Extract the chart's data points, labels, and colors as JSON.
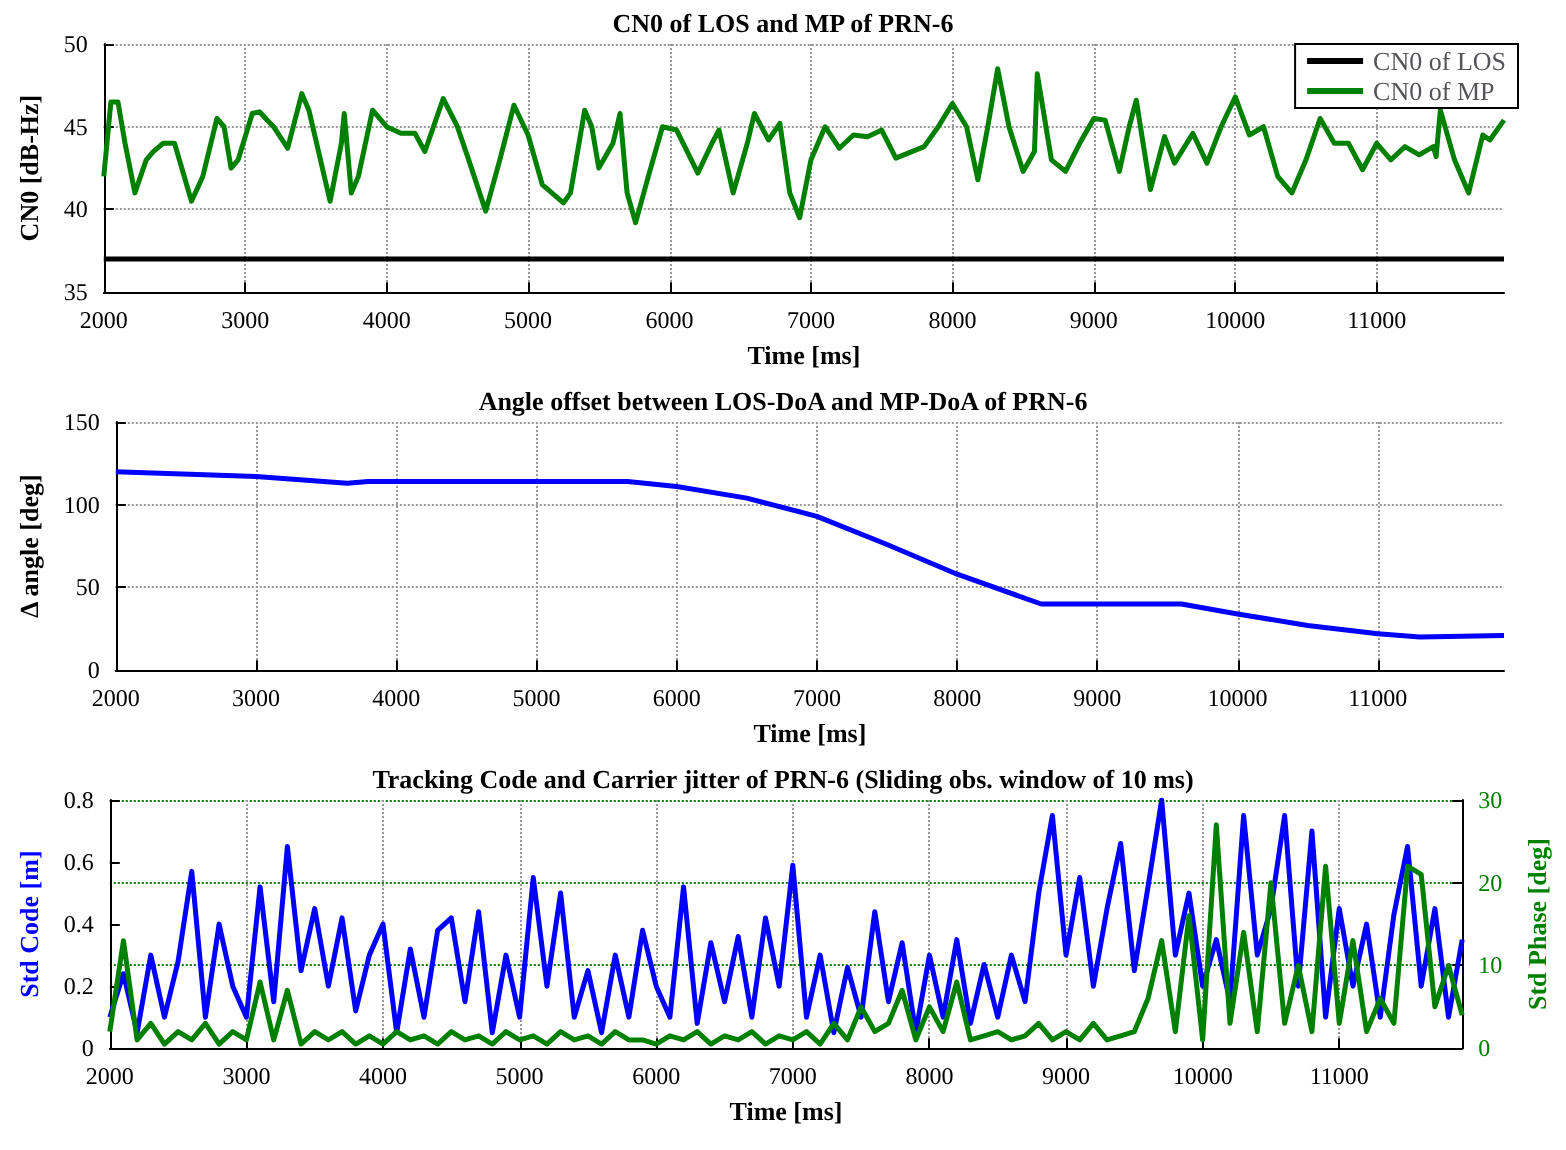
{
  "chart_data": [
    {
      "type": "line",
      "title": "CN0 of LOS and MP of PRN-6",
      "xlabel": "Time [ms]",
      "ylabel": "CN0 [dB-Hz]",
      "xlim": [
        2000,
        11900
      ],
      "xticks": [
        2000,
        3000,
        4000,
        5000,
        6000,
        7000,
        8000,
        9000,
        10000,
        11000
      ],
      "ylim": [
        35,
        50
      ],
      "yticks": [
        35,
        40,
        45,
        50
      ],
      "grid": true,
      "legend": "top right",
      "series": [
        {
          "name": "CN0 of LOS",
          "color": "#000000",
          "x": [
            2000,
            11900
          ],
          "values": [
            37,
            37
          ]
        },
        {
          "name": "CN0 of MP",
          "color": "#008000",
          "x": [
            2000,
            2050,
            2100,
            2150,
            2220,
            2300,
            2350,
            2420,
            2500,
            2620,
            2700,
            2800,
            2850,
            2900,
            2950,
            3050,
            3100,
            3200,
            3300,
            3400,
            3450,
            3600,
            3680,
            3700,
            3750,
            3800,
            3900,
            4000,
            4100,
            4200,
            4270,
            4400,
            4500,
            4580,
            4700,
            4800,
            4900,
            5000,
            5100,
            5250,
            5300,
            5400,
            5450,
            5500,
            5600,
            5650,
            5700,
            5760,
            5850,
            5950,
            6050,
            6200,
            6300,
            6350,
            6450,
            6550,
            6600,
            6700,
            6780,
            6850,
            6920,
            7000,
            7100,
            7200,
            7300,
            7400,
            7500,
            7600,
            7800,
            7900,
            8000,
            8100,
            8180,
            8250,
            8320,
            8400,
            8500,
            8580,
            8600,
            8700,
            8800,
            8900,
            9000,
            9080,
            9180,
            9250,
            9300,
            9400,
            9500,
            9570,
            9700,
            9800,
            9900,
            10000,
            10100,
            10200,
            10300,
            10400,
            10500,
            10600,
            10700,
            10800,
            10900,
            11000,
            11100,
            11200,
            11300,
            11400,
            11420,
            11450,
            11550,
            11650,
            11750,
            11800,
            11900
          ],
          "values": [
            42,
            46.5,
            46.5,
            44,
            41,
            43,
            43.5,
            44,
            44,
            40.5,
            42,
            45.5,
            45,
            42.5,
            43,
            45.8,
            45.9,
            45,
            43.7,
            47,
            46,
            40.5,
            44,
            45.8,
            41,
            42,
            46,
            45,
            44.6,
            44.6,
            43.5,
            46.7,
            45,
            43,
            39.9,
            43,
            46.3,
            44.5,
            41.5,
            40.4,
            41,
            46,
            45,
            42.5,
            44,
            45.8,
            41,
            39.2,
            42,
            45,
            44.8,
            42.2,
            44,
            44.8,
            41,
            44,
            45.8,
            44.2,
            45.2,
            41,
            39.5,
            43,
            45,
            43.7,
            44.5,
            44.4,
            44.8,
            43.1,
            43.8,
            45,
            46.4,
            45,
            41.8,
            45,
            48.5,
            45,
            42.3,
            43.5,
            48.2,
            43,
            42.3,
            44,
            45.5,
            45.4,
            42.3,
            45,
            46.6,
            41.2,
            44.4,
            42.8,
            44.6,
            42.8,
            45,
            46.8,
            44.5,
            45,
            42,
            41,
            43,
            45.5,
            44,
            44,
            42.4,
            44,
            43,
            43.8,
            43.3,
            43.8,
            43.2,
            46,
            43,
            41,
            44.5,
            44.2,
            45.4
          ]
        }
      ]
    },
    {
      "type": "line",
      "title": "Angle offset between LOS-DoA and MP-DoA of PRN-6",
      "xlabel": "Time [ms]",
      "ylabel": "Δ angle [deg]",
      "xlim": [
        2000,
        11900
      ],
      "xticks": [
        2000,
        3000,
        4000,
        5000,
        6000,
        7000,
        8000,
        9000,
        10000,
        11000
      ],
      "ylim": [
        0,
        150
      ],
      "yticks": [
        0,
        50,
        100,
        150
      ],
      "grid": true,
      "series": [
        {
          "color": "#0000ff",
          "x": [
            2000,
            3000,
            3650,
            3800,
            5650,
            6000,
            6500,
            7000,
            7500,
            8000,
            8600,
            9600,
            10000,
            10500,
            11000,
            11300,
            11900
          ],
          "values": [
            120,
            117,
            113,
            114,
            114,
            111,
            104,
            93,
            76,
            58,
            40,
            40,
            34,
            27,
            22,
            20,
            21
          ]
        }
      ]
    },
    {
      "type": "line",
      "title": "Tracking Code and Carrier jitter of PRN-6 (Sliding obs. window of 10 ms)",
      "xlabel": "Time [ms]",
      "ylabel": "Std Code [m]",
      "y2label": "Std Phase [deg]",
      "xlim": [
        2000,
        11900
      ],
      "xticks": [
        2000,
        3000,
        4000,
        5000,
        6000,
        7000,
        8000,
        9000,
        10000,
        11000
      ],
      "ylim": [
        0,
        0.8
      ],
      "yticks": [
        0,
        0.2,
        0.4,
        0.6,
        0.8
      ],
      "y2lim": [
        0,
        30
      ],
      "y2ticks": [
        0,
        10,
        20,
        30
      ],
      "grid": true,
      "series": [
        {
          "color": "#0000ff",
          "values": [
            0.1,
            0.24,
            0.05,
            0.3,
            0.1,
            0.28,
            0.57,
            0.1,
            0.4,
            0.2,
            0.1,
            0.52,
            0.15,
            0.65,
            0.25,
            0.45,
            0.2,
            0.42,
            0.12,
            0.3,
            0.4,
            0.05,
            0.32,
            0.1,
            0.38,
            0.42,
            0.15,
            0.44,
            0.05,
            0.3,
            0.1,
            0.55,
            0.2,
            0.5,
            0.1,
            0.25,
            0.05,
            0.3,
            0.1,
            0.38,
            0.2,
            0.1,
            0.52,
            0.08,
            0.34,
            0.15,
            0.36,
            0.1,
            0.42,
            0.2,
            0.59,
            0.1,
            0.3,
            0.05,
            0.26,
            0.1,
            0.44,
            0.15,
            0.34,
            0.05,
            0.3,
            0.1,
            0.35,
            0.08,
            0.27,
            0.1,
            0.3,
            0.15,
            0.5,
            0.75,
            0.3,
            0.55,
            0.2,
            0.45,
            0.66,
            0.25,
            0.52,
            0.8,
            0.3,
            0.5,
            0.2,
            0.35,
            0.15,
            0.75,
            0.3,
            0.45,
            0.75,
            0.2,
            0.7,
            0.1,
            0.45,
            0.2,
            0.4,
            0.1,
            0.43,
            0.65,
            0.2,
            0.45,
            0.1,
            0.35
          ]
        },
        {
          "color": "#008000",
          "axis": "y2",
          "values": [
            2,
            13,
            1,
            3,
            0.5,
            2,
            1,
            3,
            0.5,
            2,
            1,
            8,
            1,
            7,
            0.5,
            2,
            1,
            2,
            0.5,
            1.5,
            0.5,
            2,
            1,
            1.5,
            0.5,
            2,
            1,
            1.5,
            0.5,
            2,
            1,
            1.5,
            0.5,
            2,
            1,
            1.5,
            0.5,
            2,
            1,
            1,
            0.5,
            1.5,
            1,
            2,
            0.5,
            1.5,
            1,
            2,
            0.5,
            1.5,
            1,
            2,
            0.5,
            3,
            1,
            5,
            2,
            3,
            7,
            1,
            5,
            2,
            8,
            1,
            1.5,
            2,
            1,
            1.5,
            3,
            1,
            2,
            1,
            3,
            1,
            1.5,
            2,
            6,
            13,
            2,
            16,
            1,
            27,
            3,
            14,
            2,
            20,
            3,
            10,
            2,
            22,
            3,
            13,
            2,
            6,
            3,
            22,
            21,
            5,
            10,
            4
          ]
        }
      ],
      "x": [
        2000,
        2100,
        2200,
        2300,
        2400,
        2500,
        2600,
        2700,
        2800,
        2900,
        3000,
        3100,
        3200,
        3300,
        3400,
        3500,
        3600,
        3700,
        3800,
        3900,
        4000,
        4100,
        4200,
        4300,
        4400,
        4500,
        4600,
        4700,
        4800,
        4900,
        5000,
        5100,
        5200,
        5300,
        5400,
        5500,
        5600,
        5700,
        5800,
        5900,
        6000,
        6100,
        6200,
        6300,
        6400,
        6500,
        6600,
        6700,
        6800,
        6900,
        7000,
        7100,
        7200,
        7300,
        7400,
        7500,
        7600,
        7700,
        7800,
        7900,
        8000,
        8100,
        8200,
        8300,
        8400,
        8500,
        8600,
        8700,
        8800,
        8900,
        9000,
        9100,
        9200,
        9300,
        9400,
        9500,
        9600,
        9700,
        9800,
        9900,
        10000,
        10100,
        10200,
        10300,
        10400,
        10500,
        10600,
        10700,
        10800,
        10900,
        11000,
        11100,
        11200,
        11300,
        11400,
        11500,
        11600,
        11700,
        11800,
        11900
      ]
    }
  ]
}
